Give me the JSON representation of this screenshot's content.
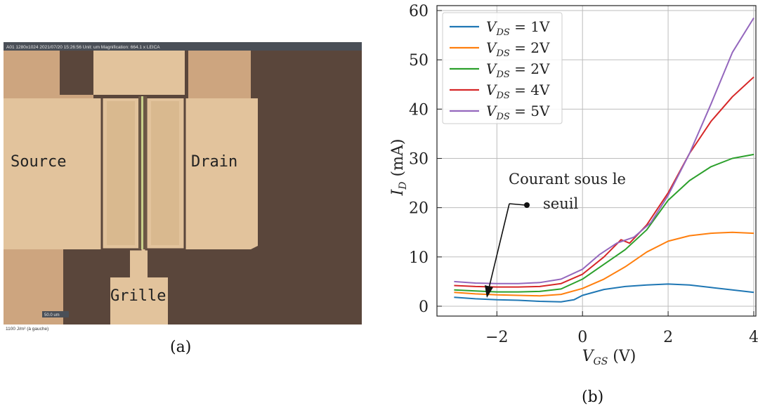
{
  "panel_a": {
    "caption": "(a)",
    "info_bar": "A01  1280x1024  2021/07/20 15:26:56  Unit: um  Magnification: 664.1 x  LEICA",
    "labels": {
      "source": "Source",
      "drain": "Drain",
      "gate": "Grille"
    },
    "scale_bar": "50.0 um",
    "footer": "1100 J/m²  (à gauche)",
    "colors": {
      "background": "#cda57f",
      "metal": "#e2c39c",
      "dark": "#5a463b"
    }
  },
  "panel_b": {
    "caption": "(b)",
    "annotation": {
      "line1": "Courant sous le",
      "line2": "seuil"
    }
  },
  "chart_data": {
    "type": "line",
    "xlabel": "V_GS (V)",
    "ylabel": "I_D (mA)",
    "xlim": [
      -3.4,
      4.05
    ],
    "ylim": [
      -2,
      61
    ],
    "xticks": [
      -2,
      0,
      2,
      4
    ],
    "yticks": [
      0,
      10,
      20,
      30,
      40,
      50,
      60
    ],
    "grid": true,
    "legend_position": "top-left",
    "series": [
      {
        "name": "V_DS = 1V",
        "color": "#1f77b4",
        "x": [
          -3,
          -2.5,
          -2,
          -1.5,
          -1,
          -0.5,
          -0.2,
          0,
          0.5,
          1,
          1.5,
          2,
          2.5,
          3,
          3.5,
          4
        ],
        "y": [
          1.8,
          1.5,
          1.3,
          1.2,
          1.0,
          0.9,
          1.3,
          2.2,
          3.4,
          4.0,
          4.3,
          4.5,
          4.3,
          3.8,
          3.3,
          2.8
        ]
      },
      {
        "name": "V_DS = 2V",
        "color": "#ff7f0e",
        "x": [
          -3,
          -2.5,
          -2,
          -1.5,
          -1,
          -0.5,
          0,
          0.5,
          1,
          1.5,
          2,
          2.5,
          3,
          3.5,
          4
        ],
        "y": [
          2.8,
          2.5,
          2.3,
          2.2,
          2.1,
          2.4,
          3.6,
          5.5,
          8.0,
          11.0,
          13.2,
          14.3,
          14.8,
          15.0,
          14.8
        ]
      },
      {
        "name": "V_DS = 2V",
        "color": "#2ca02c",
        "x": [
          -3,
          -2.5,
          -2,
          -1.5,
          -1,
          -0.5,
          0,
          0.5,
          1,
          1.5,
          2,
          2.5,
          3,
          3.5,
          4
        ],
        "y": [
          3.3,
          3.1,
          2.9,
          2.9,
          3.0,
          3.5,
          5.5,
          8.5,
          11.5,
          15.5,
          21.5,
          25.5,
          28.3,
          30.0,
          30.8
        ]
      },
      {
        "name": "V_DS = 4V",
        "color": "#d62728",
        "x": [
          -3,
          -2.5,
          -2,
          -1.5,
          -1,
          -0.5,
          0,
          0.5,
          0.9,
          1.1,
          1.5,
          2,
          2.5,
          3,
          3.5,
          4
        ],
        "y": [
          4.2,
          4.0,
          3.9,
          3.9,
          4.0,
          4.6,
          6.5,
          10.0,
          13.5,
          12.8,
          16.5,
          23.0,
          31.0,
          37.5,
          42.5,
          46.5
        ]
      },
      {
        "name": "V_DS = 5V",
        "color": "#9467bd",
        "x": [
          -3,
          -2.5,
          -2,
          -1.5,
          -1,
          -0.5,
          0,
          0.4,
          0.8,
          1.2,
          1.6,
          2,
          2.5,
          3,
          3.5,
          4
        ],
        "y": [
          5.0,
          4.7,
          4.6,
          4.6,
          4.8,
          5.5,
          7.5,
          10.5,
          12.8,
          14.0,
          17.0,
          22.5,
          31.0,
          41.0,
          51.5,
          58.5
        ]
      }
    ]
  }
}
